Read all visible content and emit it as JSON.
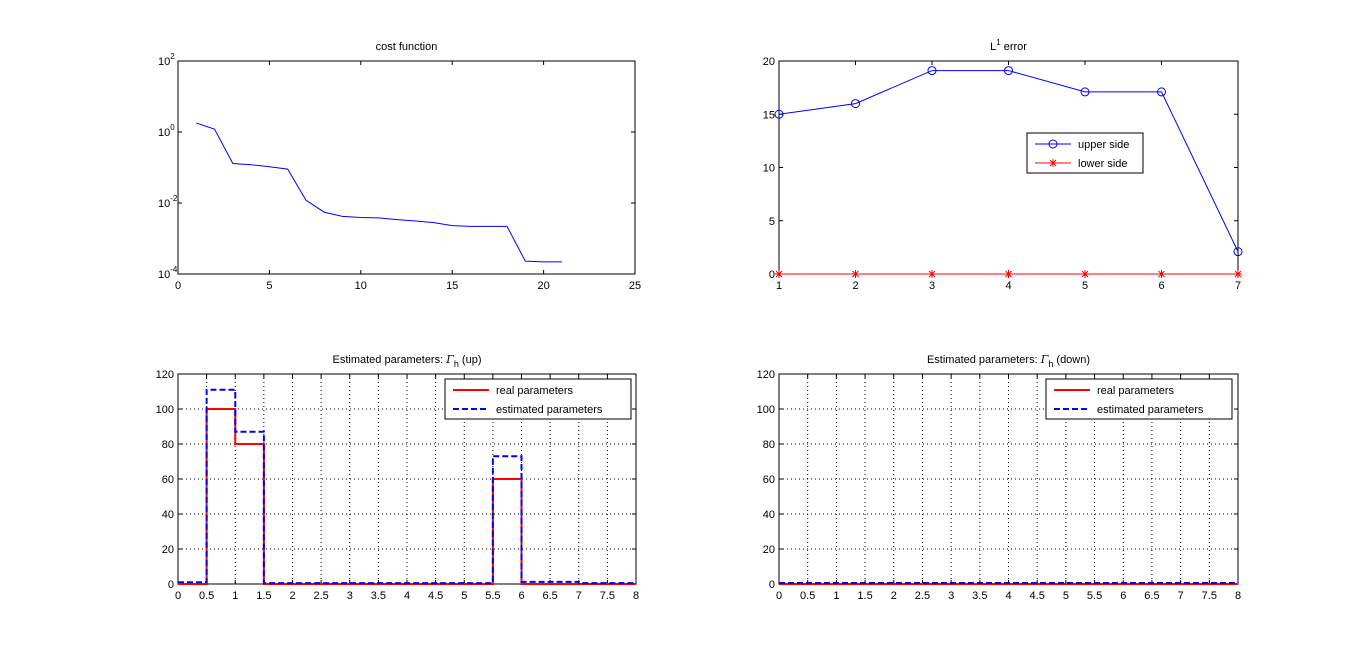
{
  "chart_data": [
    {
      "id": "cost",
      "type": "line",
      "title": "cost function",
      "xlabel": "",
      "ylabel": "",
      "yscale": "log",
      "xlim": [
        0,
        25
      ],
      "ylim": [
        0.0001,
        100
      ],
      "xticks": [
        0,
        5,
        10,
        15,
        20,
        25
      ],
      "xtick_labels": [
        "0",
        "5",
        "10",
        "15",
        "20",
        "25"
      ],
      "yticks": [
        0.0001,
        0.01,
        1,
        100
      ],
      "ytick_labels": [
        {
          "base": "10",
          "exp": "-4"
        },
        {
          "base": "10",
          "exp": "-2"
        },
        {
          "base": "10",
          "exp": "0"
        },
        {
          "base": "10",
          "exp": "2"
        }
      ],
      "grid": false,
      "series": [
        {
          "name": "cost",
          "color": "#0000ff",
          "marker": "none",
          "linestyle": "solid",
          "x": [
            1,
            2,
            3,
            4,
            5,
            6,
            7,
            8,
            9,
            10,
            11,
            12,
            13,
            14,
            15,
            16,
            17,
            18,
            19,
            20,
            21
          ],
          "y": [
            1.8,
            1.2,
            0.13,
            0.12,
            0.105,
            0.09,
            0.012,
            0.0055,
            0.0042,
            0.0039,
            0.0038,
            0.0034,
            0.0031,
            0.0028,
            0.0023,
            0.0022,
            0.0022,
            0.0022,
            0.00023,
            0.00022,
            0.00022
          ]
        }
      ]
    },
    {
      "id": "l1",
      "type": "line",
      "title": {
        "base": "L",
        "sup": "1",
        "rest": " error"
      },
      "xlabel": "",
      "ylabel": "",
      "xlim": [
        1,
        7
      ],
      "ylim": [
        0,
        20
      ],
      "xticks": [
        1,
        2,
        3,
        4,
        5,
        6,
        7
      ],
      "xtick_labels": [
        "1",
        "2",
        "3",
        "4",
        "5",
        "6",
        "7"
      ],
      "yticks": [
        0,
        5,
        10,
        15,
        20
      ],
      "ytick_labels": [
        "0",
        "5",
        "10",
        "15",
        "20"
      ],
      "grid": false,
      "legend": {
        "position": "center-right",
        "entries": [
          "upper side",
          "lower side"
        ]
      },
      "series": [
        {
          "name": "upper side",
          "color": "#0000ff",
          "marker": "circle",
          "linestyle": "solid",
          "x": [
            1,
            2,
            3,
            4,
            5,
            6,
            7
          ],
          "y": [
            15,
            16,
            19.1,
            19.1,
            17.1,
            17.1,
            2.1
          ]
        },
        {
          "name": "lower side",
          "color": "#ff0000",
          "marker": "star",
          "linestyle": "solid",
          "x": [
            1,
            2,
            3,
            4,
            5,
            6,
            7
          ],
          "y": [
            0,
            0,
            0,
            0,
            0,
            0,
            0
          ]
        }
      ]
    },
    {
      "id": "up",
      "type": "line",
      "title": {
        "pre": "Estimated parameters: ",
        "sym": "Γ",
        "sub": "h",
        "post": " (up)"
      },
      "xlabel": "",
      "ylabel": "",
      "xlim": [
        0,
        8
      ],
      "ylim": [
        0,
        120
      ],
      "xticks": [
        0,
        0.5,
        1,
        1.5,
        2,
        2.5,
        3,
        3.5,
        4,
        4.5,
        5,
        5.5,
        6,
        6.5,
        7,
        7.5,
        8
      ],
      "xtick_labels": [
        "0",
        "0.5",
        "1",
        "1.5",
        "2",
        "2.5",
        "3",
        "3.5",
        "4",
        "4.5",
        "5",
        "5.5",
        "6",
        "6.5",
        "7",
        "7.5",
        "8"
      ],
      "yticks": [
        0,
        20,
        40,
        60,
        80,
        100,
        120
      ],
      "ytick_labels": [
        "0",
        "20",
        "40",
        "60",
        "80",
        "100",
        "120"
      ],
      "grid": true,
      "legend": {
        "position": "top-right",
        "entries": [
          "real parameters",
          "estimated parameters"
        ]
      },
      "series": [
        {
          "name": "real parameters",
          "color": "#ff0000",
          "linestyle": "solid",
          "step": true,
          "x": [
            0,
            0.5,
            0.5,
            1,
            1,
            1.5,
            1.5,
            5.5,
            5.5,
            6,
            6,
            8
          ],
          "y": [
            0,
            0,
            100,
            100,
            80,
            80,
            0,
            0,
            60,
            60,
            0,
            0
          ]
        },
        {
          "name": "estimated parameters",
          "color": "#0000ff",
          "linestyle": "dashed",
          "step": true,
          "x": [
            0,
            0.5,
            0.5,
            1,
            1,
            1.5,
            1.5,
            5.5,
            5.5,
            6,
            6,
            7,
            7,
            8
          ],
          "y": [
            1,
            1,
            111,
            111,
            87,
            87,
            0.5,
            0.5,
            73,
            73,
            1.2,
            1.2,
            0.5,
            0.5
          ]
        }
      ]
    },
    {
      "id": "down",
      "type": "line",
      "title": {
        "pre": "Estimated parameters: ",
        "sym": "Γ",
        "sub": "h",
        "post": " (down)"
      },
      "xlabel": "",
      "ylabel": "",
      "xlim": [
        0,
        8
      ],
      "ylim": [
        0,
        120
      ],
      "xticks": [
        0,
        0.5,
        1,
        1.5,
        2,
        2.5,
        3,
        3.5,
        4,
        4.5,
        5,
        5.5,
        6,
        6.5,
        7,
        7.5,
        8
      ],
      "xtick_labels": [
        "0",
        "0.5",
        "1",
        "1.5",
        "2",
        "2.5",
        "3",
        "3.5",
        "4",
        "4.5",
        "5",
        "5.5",
        "6",
        "6.5",
        "7",
        "7.5",
        "8"
      ],
      "yticks": [
        0,
        20,
        40,
        60,
        80,
        100,
        120
      ],
      "ytick_labels": [
        "0",
        "20",
        "40",
        "60",
        "80",
        "100",
        "120"
      ],
      "grid": true,
      "legend": {
        "position": "top-right",
        "entries": [
          "real parameters",
          "estimated parameters"
        ]
      },
      "series": [
        {
          "name": "real parameters",
          "color": "#ff0000",
          "linestyle": "solid",
          "step": true,
          "x": [
            0,
            8
          ],
          "y": [
            0,
            0
          ]
        },
        {
          "name": "estimated parameters",
          "color": "#0000ff",
          "linestyle": "dashed",
          "step": true,
          "x": [
            0,
            8
          ],
          "y": [
            0.6,
            0.6
          ]
        }
      ]
    }
  ]
}
